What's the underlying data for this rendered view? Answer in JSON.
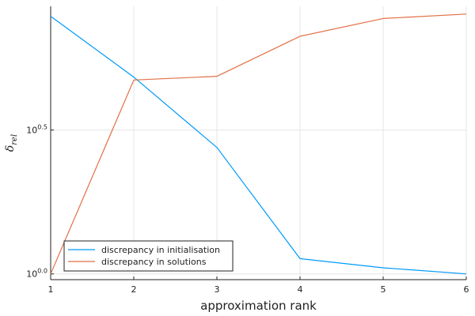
{
  "chart_data": {
    "type": "line",
    "x": [
      1,
      2,
      3,
      4,
      5,
      6
    ],
    "xticks": [
      "1",
      "2",
      "3",
      "4",
      "5",
      "6"
    ],
    "xlim": [
      1,
      6
    ],
    "xlabel": "approximation rank",
    "ylabel": "δ",
    "ylabel_subscript": "rel",
    "yscale": "log10",
    "ylim_log10": [
      -0.02,
      0.93
    ],
    "yticks": [
      {
        "value": 1.0,
        "base": "10",
        "exponent": "0.0"
      },
      {
        "value": 3.1623,
        "base": "10",
        "exponent": "0.5"
      }
    ],
    "grid": true,
    "legend_position": "bottom-left",
    "series": [
      {
        "name": "discrepancy in initialisation",
        "color": "#009af9",
        "values": [
          7.86,
          4.83,
          2.75,
          1.13,
          1.05,
          1.0
        ]
      },
      {
        "name": "discrepancy in solutions",
        "color": "#e26f46",
        "values": [
          1.0,
          4.72,
          4.86,
          6.7,
          7.72,
          8.0
        ]
      }
    ]
  }
}
